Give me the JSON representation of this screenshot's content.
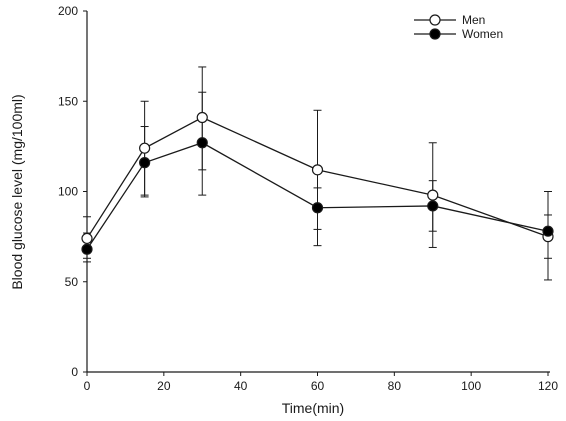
{
  "chart_data": {
    "type": "line",
    "title": "",
    "xlabel": "Time(min)",
    "ylabel": "Blood glucose level (mg/100ml)",
    "xlim": [
      0,
      120
    ],
    "ylim": [
      0,
      200
    ],
    "x_ticks": [
      0,
      20,
      40,
      60,
      80,
      100,
      120
    ],
    "y_ticks": [
      0,
      50,
      100,
      150,
      200
    ],
    "grid": false,
    "legend_position": "top-right",
    "x": [
      0,
      15,
      30,
      60,
      90,
      120
    ],
    "series": [
      {
        "name": "Men",
        "marker": "open-circle",
        "values": [
          74,
          124,
          141,
          112,
          98,
          75
        ],
        "error_upper": [
          86,
          150,
          169,
          145,
          127,
          87
        ],
        "error_lower": [
          63,
          98,
          112,
          79,
          69,
          63
        ]
      },
      {
        "name": "Women",
        "marker": "filled-circle",
        "values": [
          68,
          116,
          127,
          91,
          92,
          78
        ],
        "error_upper": [
          77,
          136,
          155,
          102,
          106,
          100
        ],
        "error_lower": [
          61,
          97,
          98,
          70,
          78,
          51
        ]
      }
    ],
    "colors": {
      "line": "#1a1a1a",
      "open_marker_fill": "#ffffff",
      "filled_marker_fill": "#000000"
    }
  }
}
